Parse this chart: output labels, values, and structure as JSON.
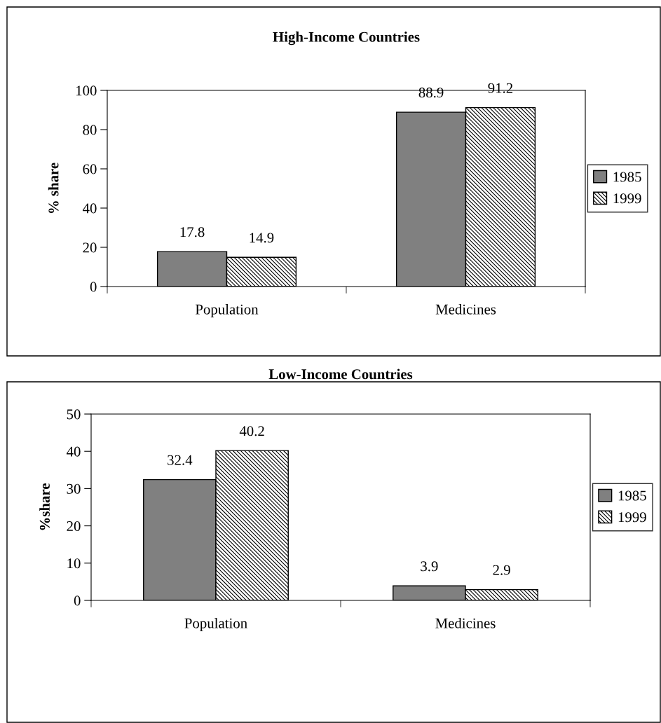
{
  "chart_data": [
    {
      "type": "bar",
      "title": "High-Income Countries",
      "ylabel": "% share",
      "categories": [
        "Population",
        "Medicines"
      ],
      "series": [
        {
          "name": "1985",
          "color": "#808080",
          "values": [
            17.8,
            88.9
          ]
        },
        {
          "name": "1999",
          "color": "#000000",
          "values": [
            14.9,
            91.2
          ]
        }
      ],
      "ylim": [
        0,
        100
      ],
      "yticks": [
        0,
        20,
        40,
        60,
        80,
        100
      ],
      "grid": false,
      "legend": "right",
      "data_labels": true
    },
    {
      "type": "bar",
      "title": "Low-Income Countries",
      "ylabel": "%share",
      "categories": [
        "Population",
        "Medicines"
      ],
      "series": [
        {
          "name": "1985",
          "color": "#808080",
          "values": [
            32.4,
            3.9
          ]
        },
        {
          "name": "1999",
          "color": "#000000",
          "values": [
            40.2,
            2.9
          ]
        }
      ],
      "ylim": [
        0,
        50
      ],
      "yticks": [
        0,
        10,
        20,
        30,
        40,
        50
      ],
      "grid": false,
      "legend": "right",
      "data_labels": true
    }
  ]
}
